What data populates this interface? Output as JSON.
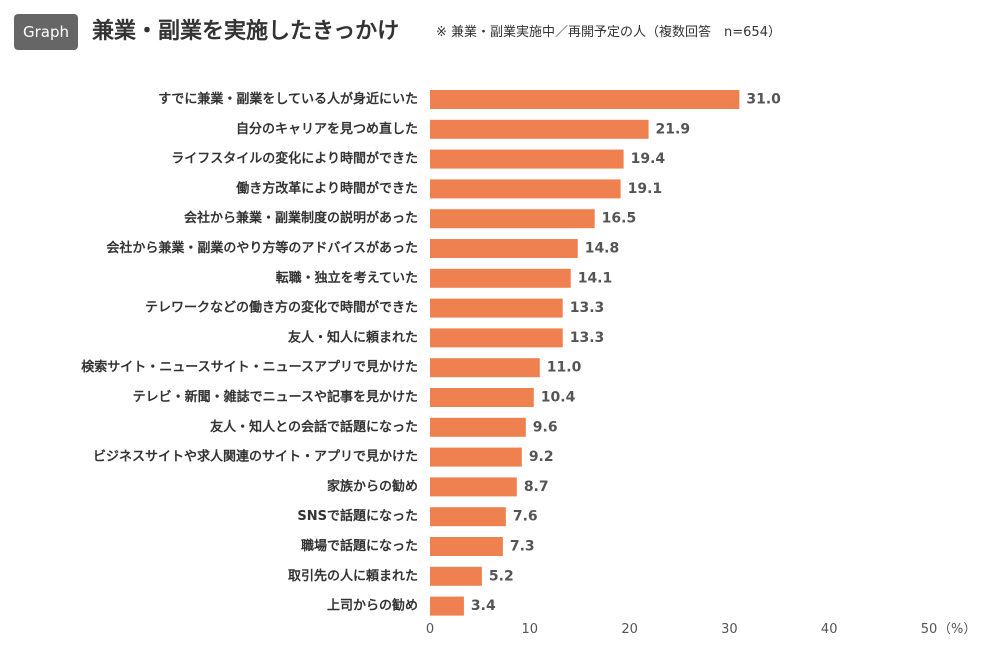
{
  "header": {
    "badge": "Graph",
    "title": "兼業・副業を実施したきっかけ",
    "note": "※ 兼業・副業実施中／再開予定の人（複数回答　n=654）"
  },
  "chart_data": {
    "type": "bar",
    "orientation": "horizontal",
    "title": "兼業・副業を実施したきっかけ",
    "xlabel": "",
    "unit": "（%）",
    "xlim": [
      0,
      50
    ],
    "xticks": [
      0,
      10,
      20,
      30,
      40,
      50
    ],
    "bar_color": "#ef8151",
    "grid": false,
    "categories": [
      "すでに兼業・副業をしている人が身近にいた",
      "自分のキャリアを見つめ直した",
      "ライフスタイルの変化により時間ができた",
      "働き方改革により時間ができた",
      "会社から兼業・副業制度の説明があった",
      "会社から兼業・副業のやり方等のアドバイスがあった",
      "転職・独立を考えていた",
      "テレワークなどの働き方の変化で時間ができた",
      "友人・知人に頼まれた",
      "検索サイト・ニュースサイト・ニュースアプリで見かけた",
      "テレビ・新聞・雑誌でニュースや記事を見かけた",
      "友人・知人との会話で話題になった",
      "ビジネスサイトや求人関連のサイト・アプリで見かけた",
      "家族からの勧め",
      "SNSで話題になった",
      "職場で話題になった",
      "取引先の人に頼まれた",
      "上司からの勧め"
    ],
    "values": [
      31.0,
      21.9,
      19.4,
      19.1,
      16.5,
      14.8,
      14.1,
      13.3,
      13.3,
      11.0,
      10.4,
      9.6,
      9.2,
      8.7,
      7.6,
      7.3,
      5.2,
      3.4
    ]
  }
}
